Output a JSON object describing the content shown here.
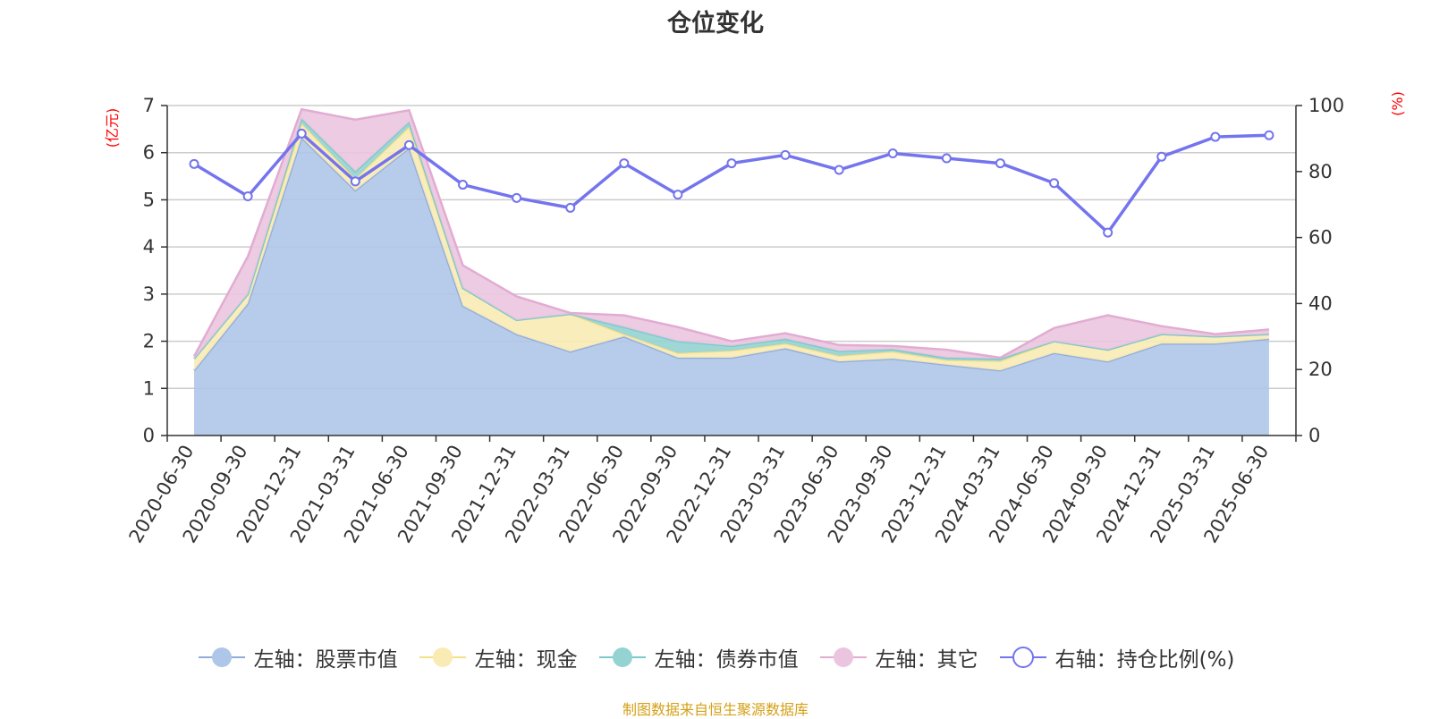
{
  "title": "仓位变化",
  "source_note": "制图数据来自恒生聚源数据库",
  "colors": {
    "stock": "#aec6e8",
    "stock_line": "#91acdb",
    "cash": "#faebb5",
    "cash_line": "#f5e08a",
    "bond": "#95d3d3",
    "bond_line": "#7ac9cb",
    "other": "#ebc5df",
    "other_line": "#e2acd2",
    "ratio": "#7474ee",
    "grid": "#cccccc",
    "axis": "#333333",
    "unit": "#ff0000"
  },
  "chart_data": {
    "type": "area",
    "title": "仓位变化",
    "categories": [
      "2020-06-30",
      "2020-09-30",
      "2020-12-31",
      "2021-03-31",
      "2021-06-30",
      "2021-09-30",
      "2021-12-31",
      "2022-03-31",
      "2022-06-30",
      "2022-09-30",
      "2022-12-31",
      "2023-03-31",
      "2023-06-30",
      "2023-09-30",
      "2023-12-31",
      "2024-03-31",
      "2024-06-30",
      "2024-09-30",
      "2024-12-31",
      "2025-03-31",
      "2025-06-30"
    ],
    "left_axis": {
      "unit": "(亿元)",
      "ylim": [
        0,
        7
      ],
      "ticks": [
        0,
        1,
        2,
        3,
        4,
        5,
        6,
        7
      ]
    },
    "right_axis": {
      "unit": "(%)",
      "ylim": [
        0,
        100
      ],
      "ticks": [
        0,
        20,
        40,
        60,
        80,
        100
      ]
    },
    "grid": true,
    "legend_position": "bottom",
    "stacked_series": [
      {
        "name": "左轴：股票市值",
        "axis": "left",
        "values": [
          1.38,
          2.8,
          6.32,
          5.2,
          6.1,
          2.75,
          2.15,
          1.78,
          2.1,
          1.65,
          1.65,
          1.85,
          1.57,
          1.63,
          1.5,
          1.38,
          1.75,
          1.57,
          1.95,
          1.95,
          2.05
        ]
      },
      {
        "name": "左轴：现金",
        "axis": "left",
        "values": [
          0.25,
          0.2,
          0.3,
          0.25,
          0.45,
          0.38,
          0.3,
          0.8,
          0.05,
          0.1,
          0.15,
          0.1,
          0.12,
          0.15,
          0.1,
          0.2,
          0.25,
          0.25,
          0.2,
          0.15,
          0.1
        ]
      },
      {
        "name": "左轴：债券市值",
        "axis": "left",
        "values": [
          0,
          0,
          0.1,
          0.15,
          0.1,
          0,
          0,
          0,
          0.15,
          0.25,
          0.1,
          0.1,
          0.1,
          0.05,
          0.05,
          0.05,
          0,
          0,
          0,
          0,
          0
        ]
      },
      {
        "name": "左轴：其它",
        "axis": "left",
        "values": [
          0.05,
          0.8,
          0.2,
          1.1,
          0.25,
          0.48,
          0.5,
          0.02,
          0.25,
          0.3,
          0.1,
          0.12,
          0.13,
          0.07,
          0.17,
          0.02,
          0.28,
          0.73,
          0.17,
          0.05,
          0.1
        ]
      }
    ],
    "line_series": [
      {
        "name": "右轴：持仓比例(%)",
        "axis": "right",
        "values": [
          82.3,
          72.5,
          91.5,
          77,
          88,
          76,
          72,
          69,
          82.5,
          73,
          82.5,
          85,
          80.5,
          85.5,
          84,
          82.5,
          76.5,
          61.5,
          84.5,
          90.5,
          91
        ]
      }
    ]
  }
}
